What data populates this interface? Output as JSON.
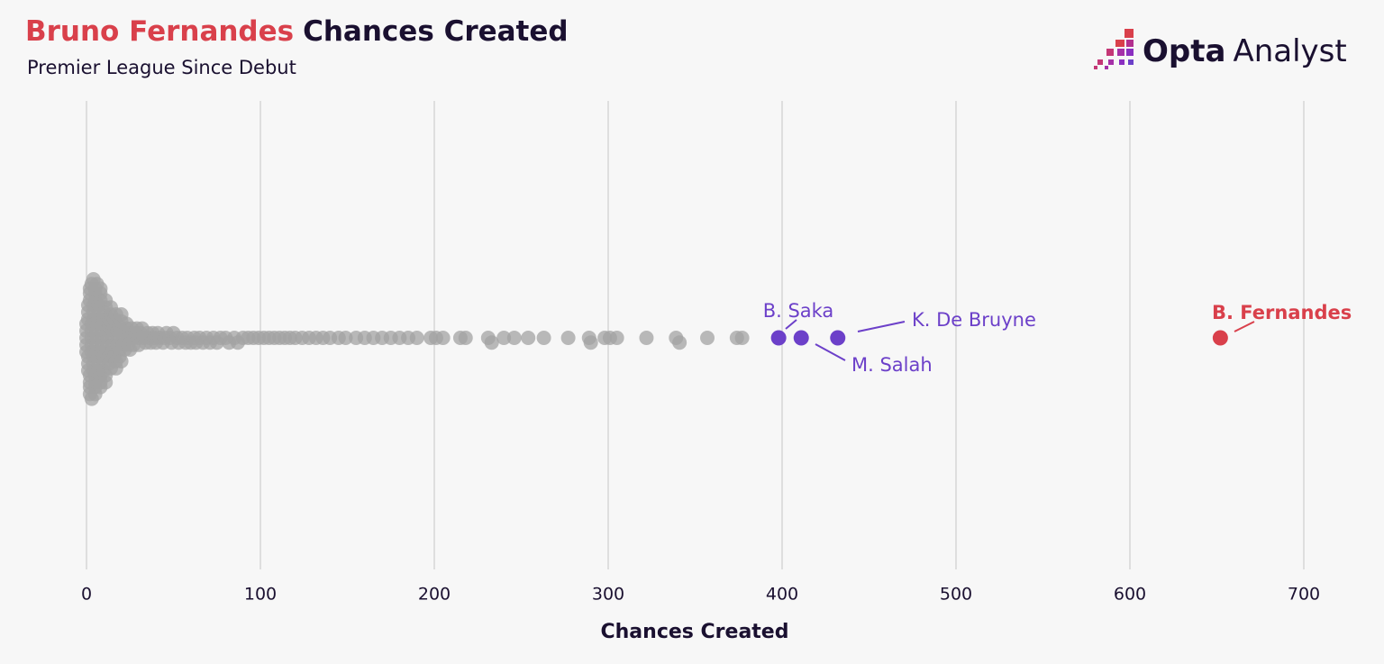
{
  "chart_data": {
    "type": "beeswarm",
    "title_highlight": "Bruno Fernandes",
    "title": "Chances Created",
    "subtitle": "Premier League Since Debut",
    "logo": {
      "brand": "Opta",
      "product": "Analyst"
    },
    "x_label": "Chances Created",
    "xlim": [
      0,
      700
    ],
    "xticks": [
      0,
      100,
      200,
      300,
      400,
      500,
      600,
      700
    ],
    "grid": true,
    "color": "#a3a3a3",
    "values": [
      0,
      0,
      0,
      0,
      0,
      1,
      1,
      1,
      1,
      1,
      1,
      2,
      2,
      2,
      2,
      2,
      2,
      2,
      3,
      3,
      3,
      3,
      3,
      3,
      3,
      4,
      4,
      4,
      4,
      4,
      4,
      4,
      5,
      5,
      5,
      5,
      5,
      5,
      5,
      6,
      6,
      6,
      6,
      6,
      6,
      7,
      7,
      7,
      7,
      7,
      7,
      8,
      8,
      8,
      8,
      8,
      8,
      9,
      9,
      9,
      9,
      9,
      10,
      10,
      10,
      10,
      10,
      11,
      11,
      11,
      11,
      12,
      12,
      12,
      12,
      13,
      13,
      13,
      13,
      14,
      14,
      14,
      15,
      15,
      15,
      15,
      16,
      16,
      16,
      17,
      17,
      17,
      18,
      18,
      18,
      19,
      19,
      19,
      20,
      20,
      20,
      21,
      21,
      22,
      22,
      23,
      23,
      24,
      24,
      25,
      25,
      26,
      27,
      27,
      28,
      29,
      30,
      30,
      31,
      32,
      33,
      34,
      35,
      36,
      37,
      38,
      39,
      40,
      41,
      42,
      44,
      45,
      46,
      48,
      49,
      50,
      52,
      53,
      55,
      57,
      58,
      60,
      62,
      63,
      65,
      67,
      69,
      71,
      73,
      75,
      77,
      80,
      82,
      85,
      87,
      90,
      93,
      96,
      99,
      102,
      105,
      108,
      111,
      114,
      117,
      120,
      124,
      128,
      132,
      136,
      140,
      145,
      149,
      155,
      160,
      165,
      170,
      175,
      180,
      185,
      190,
      198,
      201,
      205,
      215,
      218,
      231,
      233,
      240,
      246,
      254,
      263,
      277,
      289,
      290,
      298,
      301,
      305,
      322,
      339,
      341,
      357,
      374,
      377
    ],
    "highlights": [
      {
        "name": "B. Saka",
        "value": 398,
        "color": "#6c40c9"
      },
      {
        "name": "M. Salah",
        "value": 411,
        "color": "#6c40c9"
      },
      {
        "name": "K. De Bruyne",
        "value": 432,
        "color": "#6c40c9"
      },
      {
        "name": "B. Fernandes",
        "value": 652,
        "color": "#d9404b"
      }
    ]
  }
}
